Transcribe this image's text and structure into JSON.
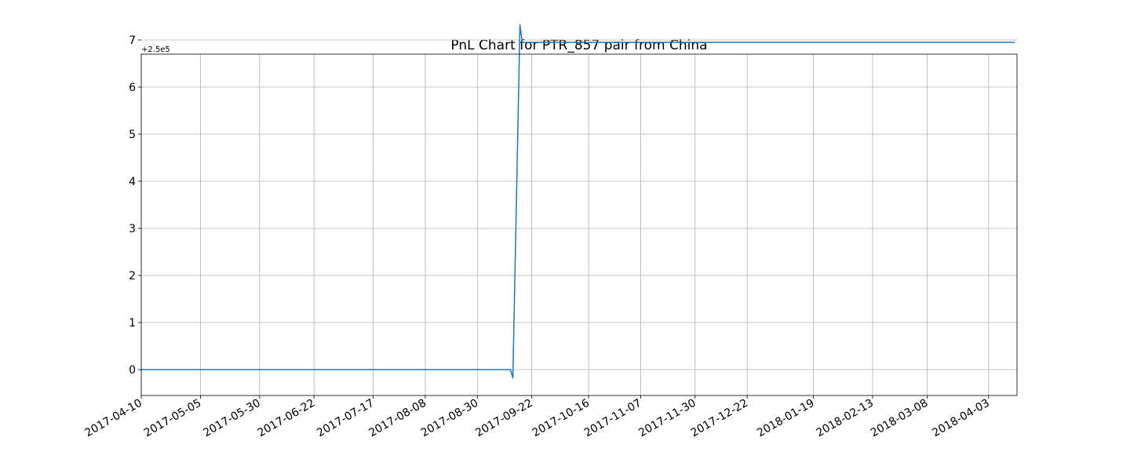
{
  "chart_data": {
    "type": "line",
    "title": "PnL Chart for PTR_857 pair from China",
    "xlabel": "",
    "ylabel": "",
    "y_offset_label": "+2.5e5",
    "y_offset": 250000,
    "xlim": [
      "2017-04-10",
      "2018-04-15"
    ],
    "ylim": [
      -0.55,
      6.7
    ],
    "grid": true,
    "legend": "none",
    "x_ticks": [
      "2017-04-10",
      "2017-05-05",
      "2017-05-30",
      "2017-06-22",
      "2017-07-17",
      "2017-08-08",
      "2017-08-30",
      "2017-09-22",
      "2017-10-16",
      "2017-11-07",
      "2017-11-30",
      "2017-12-22",
      "2018-01-19",
      "2018-02-13",
      "2018-03-08",
      "2018-04-03"
    ],
    "y_ticks": [
      0,
      1,
      2,
      3,
      4,
      5,
      6,
      7
    ],
    "series": [
      {
        "color": "#1f77b4",
        "x": [
          "2017-04-10",
          "2017-09-13",
          "2017-09-14",
          "2017-09-17",
          "2017-09-18",
          "2017-09-19",
          "2018-04-14"
        ],
        "y": [
          0,
          0,
          -0.18,
          7.32,
          6.95,
          6.95,
          6.95
        ]
      }
    ]
  }
}
